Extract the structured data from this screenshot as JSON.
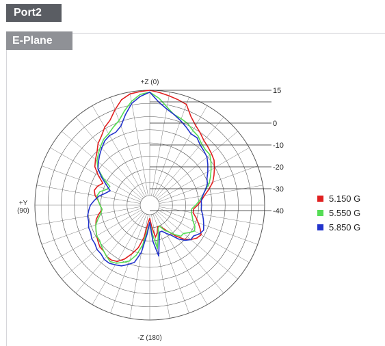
{
  "header": {
    "port_label": "Port2"
  },
  "panel": {
    "plane_label": "E-Plane"
  },
  "chart_data": {
    "type": "polar-line",
    "title": "",
    "angle_labels": {
      "top": "+Z (0)",
      "left": "+Y\n(90)",
      "bottom": "-Z (180)"
    },
    "angle_grid_step_deg": 10,
    "radial_ticks": [
      "15",
      "0",
      "-10",
      "-20",
      "-30",
      "-40"
    ],
    "radial_tick_values": [
      15,
      0,
      -10,
      -20,
      -30,
      -40
    ],
    "radial_range": [
      -40,
      15
    ],
    "grid": true,
    "legend_position": "right",
    "angle_convention": "degrees clockwise from +Z (top)",
    "series": [
      {
        "name": "5.150 G",
        "color": "#e02020",
        "points": [
          [
            0,
            15
          ],
          [
            5,
            14
          ],
          [
            10,
            13
          ],
          [
            15,
            12
          ],
          [
            20,
            11
          ],
          [
            25,
            6
          ],
          [
            30,
            3
          ],
          [
            35,
            1
          ],
          [
            40,
            -1
          ],
          [
            45,
            -2
          ],
          [
            50,
            -3
          ],
          [
            55,
            -4
          ],
          [
            60,
            -6
          ],
          [
            65,
            -8
          ],
          [
            70,
            -10
          ],
          [
            75,
            -13
          ],
          [
            80,
            -16
          ],
          [
            85,
            -18
          ],
          [
            90,
            -20
          ],
          [
            95,
            -22
          ],
          [
            100,
            -22
          ],
          [
            105,
            -20
          ],
          [
            110,
            -18
          ],
          [
            115,
            -16
          ],
          [
            120,
            -14
          ],
          [
            125,
            -15
          ],
          [
            130,
            -17
          ],
          [
            135,
            -20
          ],
          [
            140,
            -24
          ],
          [
            145,
            -28
          ],
          [
            150,
            -31
          ],
          [
            155,
            -33
          ],
          [
            160,
            -33
          ],
          [
            165,
            -30
          ],
          [
            170,
            -28
          ],
          [
            175,
            -34
          ],
          [
            180,
            -38
          ],
          [
            185,
            -36
          ],
          [
            190,
            -28
          ],
          [
            195,
            -22
          ],
          [
            200,
            -18
          ],
          [
            205,
            -14
          ],
          [
            210,
            -11
          ],
          [
            215,
            -10
          ],
          [
            220,
            -10
          ],
          [
            225,
            -11
          ],
          [
            230,
            -11
          ],
          [
            235,
            -12
          ],
          [
            240,
            -13
          ],
          [
            245,
            -14
          ],
          [
            250,
            -15
          ],
          [
            255,
            -16
          ],
          [
            260,
            -18
          ],
          [
            265,
            -20
          ],
          [
            270,
            -19
          ],
          [
            275,
            -18
          ],
          [
            280,
            -16
          ],
          [
            285,
            -15
          ],
          [
            290,
            -16
          ],
          [
            295,
            -18
          ],
          [
            300,
            -14
          ],
          [
            305,
            -10
          ],
          [
            310,
            -8
          ],
          [
            315,
            -6
          ],
          [
            320,
            -3
          ],
          [
            325,
            -1
          ],
          [
            330,
            2
          ],
          [
            335,
            4
          ],
          [
            340,
            8
          ],
          [
            345,
            12
          ],
          [
            350,
            14
          ],
          [
            355,
            14.5
          ],
          [
            360,
            15
          ]
        ]
      },
      {
        "name": "5.550 G",
        "color": "#55dd55",
        "points": [
          [
            0,
            14
          ],
          [
            5,
            11
          ],
          [
            10,
            7
          ],
          [
            15,
            4
          ],
          [
            20,
            3
          ],
          [
            25,
            2
          ],
          [
            30,
            0
          ],
          [
            35,
            -1
          ],
          [
            40,
            -3
          ],
          [
            45,
            -4
          ],
          [
            50,
            -4
          ],
          [
            55,
            -6
          ],
          [
            60,
            -8
          ],
          [
            65,
            -10
          ],
          [
            70,
            -12
          ],
          [
            75,
            -15
          ],
          [
            80,
            -17
          ],
          [
            85,
            -19
          ],
          [
            90,
            -21
          ],
          [
            95,
            -23
          ],
          [
            100,
            -23
          ],
          [
            105,
            -22
          ],
          [
            110,
            -21
          ],
          [
            115,
            -19
          ],
          [
            120,
            -18
          ],
          [
            125,
            -20
          ],
          [
            130,
            -22
          ],
          [
            135,
            -22
          ],
          [
            140,
            -25
          ],
          [
            145,
            -28
          ],
          [
            150,
            -30
          ],
          [
            155,
            -33
          ],
          [
            160,
            -32
          ],
          [
            165,
            -28
          ],
          [
            170,
            -22
          ],
          [
            175,
            -30
          ],
          [
            180,
            -36
          ],
          [
            185,
            -32
          ],
          [
            190,
            -24
          ],
          [
            195,
            -18
          ],
          [
            200,
            -14
          ],
          [
            205,
            -12
          ],
          [
            210,
            -10
          ],
          [
            215,
            -9
          ],
          [
            220,
            -10
          ],
          [
            225,
            -11
          ],
          [
            230,
            -12
          ],
          [
            235,
            -13
          ],
          [
            240,
            -13
          ],
          [
            245,
            -14
          ],
          [
            250,
            -15
          ],
          [
            255,
            -17
          ],
          [
            260,
            -19
          ],
          [
            265,
            -20
          ],
          [
            270,
            -19
          ],
          [
            275,
            -18
          ],
          [
            280,
            -17
          ],
          [
            285,
            -18
          ],
          [
            290,
            -21
          ],
          [
            295,
            -22
          ],
          [
            300,
            -17
          ],
          [
            305,
            -12
          ],
          [
            310,
            -9
          ],
          [
            315,
            -7
          ],
          [
            320,
            -5
          ],
          [
            325,
            -3
          ],
          [
            330,
            -2
          ],
          [
            335,
            0
          ],
          [
            340,
            2
          ],
          [
            345,
            6
          ],
          [
            350,
            10
          ],
          [
            355,
            13
          ],
          [
            360,
            14
          ]
        ]
      },
      {
        "name": "5.850 G",
        "color": "#2233cc",
        "points": [
          [
            0,
            14
          ],
          [
            5,
            9
          ],
          [
            10,
            6
          ],
          [
            15,
            4
          ],
          [
            20,
            2
          ],
          [
            25,
            0
          ],
          [
            30,
            -2
          ],
          [
            35,
            -2
          ],
          [
            40,
            -4
          ],
          [
            45,
            -5
          ],
          [
            50,
            -6
          ],
          [
            55,
            -8
          ],
          [
            60,
            -10
          ],
          [
            65,
            -12
          ],
          [
            70,
            -13
          ],
          [
            75,
            -15
          ],
          [
            80,
            -17
          ],
          [
            85,
            -18
          ],
          [
            90,
            -18
          ],
          [
            95,
            -18
          ],
          [
            100,
            -17
          ],
          [
            105,
            -16
          ],
          [
            110,
            -15
          ],
          [
            115,
            -14
          ],
          [
            120,
            -15
          ],
          [
            125,
            -17
          ],
          [
            130,
            -17
          ],
          [
            135,
            -19
          ],
          [
            140,
            -22
          ],
          [
            145,
            -26
          ],
          [
            150,
            -28
          ],
          [
            155,
            -30
          ],
          [
            160,
            -30
          ],
          [
            165,
            -26
          ],
          [
            170,
            -18
          ],
          [
            175,
            -26
          ],
          [
            180,
            -36
          ],
          [
            185,
            -30
          ],
          [
            190,
            -20
          ],
          [
            195,
            -14
          ],
          [
            200,
            -12
          ],
          [
            205,
            -10
          ],
          [
            210,
            -9
          ],
          [
            215,
            -8
          ],
          [
            220,
            -8
          ],
          [
            225,
            -9
          ],
          [
            230,
            -9
          ],
          [
            235,
            -10
          ],
          [
            240,
            -10
          ],
          [
            245,
            -11
          ],
          [
            250,
            -11
          ],
          [
            255,
            -12
          ],
          [
            260,
            -12
          ],
          [
            265,
            -13
          ],
          [
            270,
            -14
          ],
          [
            275,
            -16
          ],
          [
            280,
            -18
          ],
          [
            285,
            -21
          ],
          [
            290,
            -23
          ],
          [
            295,
            -20
          ],
          [
            300,
            -16
          ],
          [
            305,
            -12
          ],
          [
            310,
            -10
          ],
          [
            315,
            -8
          ],
          [
            320,
            -6
          ],
          [
            325,
            -4
          ],
          [
            330,
            -3
          ],
          [
            335,
            -3
          ],
          [
            340,
            -1
          ],
          [
            345,
            4
          ],
          [
            350,
            9
          ],
          [
            355,
            12
          ],
          [
            360,
            14
          ]
        ]
      }
    ]
  }
}
